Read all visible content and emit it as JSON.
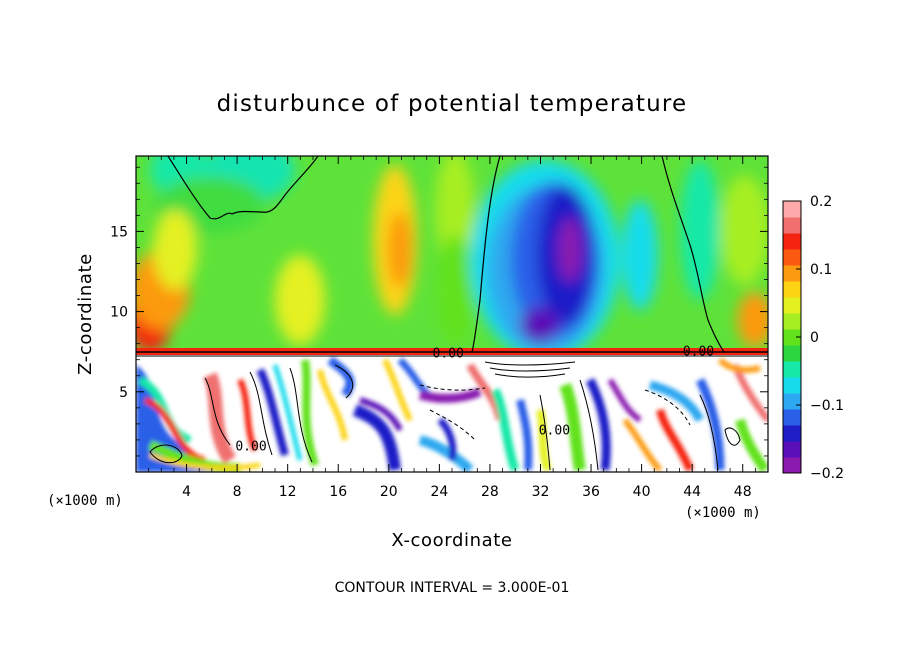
{
  "chart_data": {
    "type": "heatmap",
    "title": "disturbunce of potential temperature",
    "xlabel": "X-coordinate",
    "ylabel": "Z-coordinate",
    "x_unit": "(×1000 m)",
    "z_unit": "(×1000 m)",
    "xlim": [
      0,
      50
    ],
    "ylim": [
      0,
      19.7
    ],
    "x_ticks": [
      "4",
      "8",
      "12",
      "16",
      "20",
      "24",
      "28",
      "32",
      "36",
      "40",
      "44",
      "48"
    ],
    "x_tick_values": [
      4,
      8,
      12,
      16,
      20,
      24,
      28,
      32,
      36,
      40,
      44,
      48
    ],
    "y_ticks": [
      "5",
      "10",
      "15"
    ],
    "y_tick_values": [
      5,
      10,
      15
    ],
    "colorbar": {
      "range": [
        -0.2,
        0.2
      ],
      "tick_labels": [
        "0.2",
        "0.1",
        "0",
        "−0.1",
        "−0.2"
      ],
      "tick_values": [
        0.2,
        0.1,
        0,
        -0.1,
        -0.2
      ],
      "colors": [
        "#8a1ab0",
        "#5a0fb8",
        "#1f1fc8",
        "#2a5fe8",
        "#2ea8f0",
        "#18dcec",
        "#16e8a8",
        "#2cd640",
        "#62e21a",
        "#a6ee22",
        "#e4f020",
        "#fcd414",
        "#fc9a10",
        "#fc5a12",
        "#f42410",
        "#f07070",
        "#ffaaaa"
      ]
    },
    "contour_labels": [
      {
        "text": "0.00",
        "x": 24.7,
        "z": 7.4
      },
      {
        "text": "0.00",
        "x": 44.5,
        "z": 7.5
      },
      {
        "text": "0.00",
        "x": 9.1,
        "z": 1.6
      },
      {
        "text": "0.00",
        "x": 33.1,
        "z": 2.6
      }
    ],
    "contour_interval_text": "CONTOUR INTERVAL = 3.000E-01",
    "grid": false
  }
}
